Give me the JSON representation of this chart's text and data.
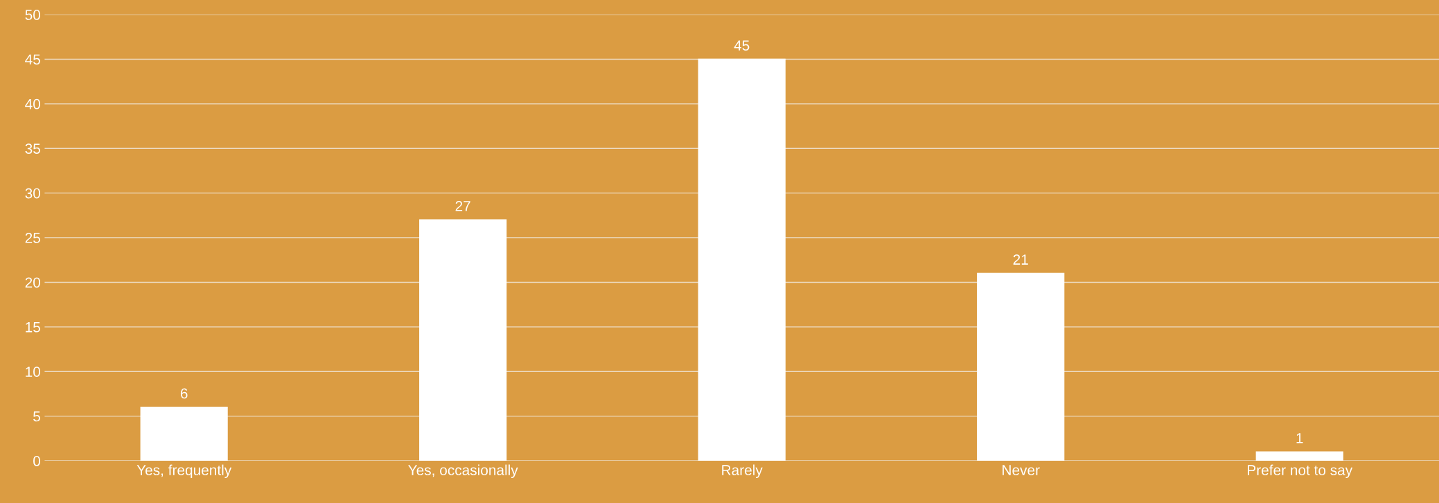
{
  "chart_data": {
    "type": "bar",
    "categories": [
      "Yes, frequently",
      "Yes, occasionally",
      "Rarely",
      "Never",
      "Prefer not to say"
    ],
    "values": [
      6,
      27,
      45,
      21,
      1
    ],
    "color": "#ffffff",
    "ylim": [
      0,
      50
    ],
    "yticks": [
      0,
      5,
      10,
      15,
      20,
      25,
      30,
      35,
      40,
      45,
      50
    ],
    "grid": "y",
    "data_labels": true,
    "legend": false
  }
}
